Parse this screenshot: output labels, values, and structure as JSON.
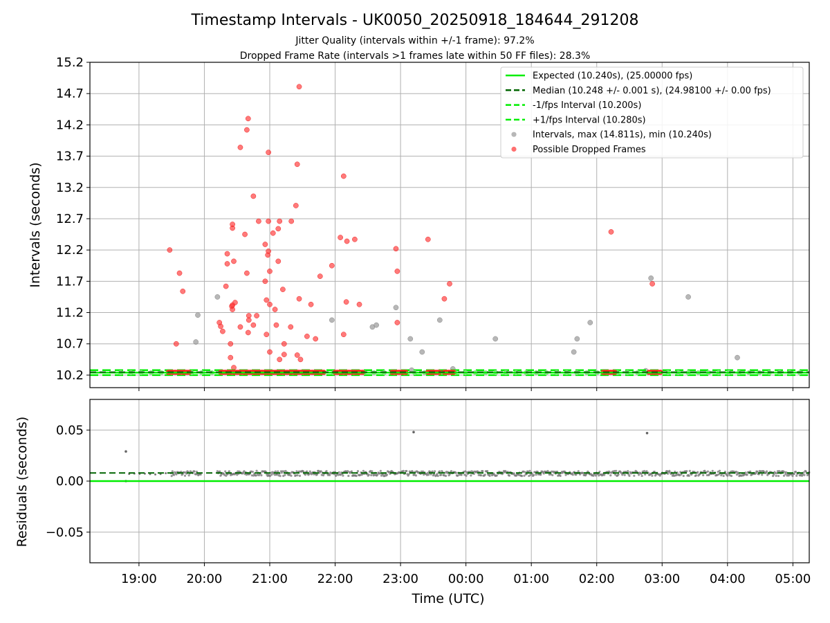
{
  "chart_data": [
    {
      "type": "scatter",
      "title": "Timestamp Intervals - UK0050_20250918_184644_291208",
      "subtitle_1": "Jitter Quality (intervals within +/-1 frame): 97.2%",
      "subtitle_2": "Dropped Frame Rate (intervals >1 frames late within 50 FF files): 28.3%",
      "ylabel": "Intervals (seconds)",
      "ylim": [
        10.0,
        15.2
      ],
      "yticks": [
        "10.2",
        "10.7",
        "11.2",
        "11.7",
        "12.2",
        "12.7",
        "13.2",
        "13.7",
        "14.2",
        "14.7",
        "15.2"
      ],
      "xlim_hours": [
        18.25,
        29.25
      ],
      "grid": true,
      "legend_position": "top-right",
      "expected_interval": 10.24,
      "median_interval": 10.248,
      "lower_interval": 10.2,
      "upper_interval": 10.28,
      "series": [
        {
          "name": "Expected (10.240s), (25.00000 fps)",
          "color": "#00ee00",
          "style": "solid"
        },
        {
          "name": "Median (10.248 +/- 0.001 s), (24.98100 +/- 0.00 fps)",
          "color": "#006400",
          "style": "dashed"
        },
        {
          "name": "-1/fps Interval (10.200s)",
          "color": "#00ee00",
          "style": "dashed"
        },
        {
          "name": "+1/fps Interval (10.280s)",
          "color": "#00ee00",
          "style": "dashed"
        },
        {
          "name": "Intervals, max (14.811s), min (10.240s)",
          "color": "#999999",
          "style": "marker"
        },
        {
          "name": "Possible Dropped Frames",
          "color": "#ff3333",
          "style": "marker"
        }
      ],
      "gray_points": [
        [
          19.87,
          10.73
        ],
        [
          19.9,
          11.16
        ],
        [
          20.2,
          11.45
        ],
        [
          21.95,
          11.08
        ],
        [
          22.57,
          10.97
        ],
        [
          22.63,
          11.0
        ],
        [
          22.93,
          11.28
        ],
        [
          23.15,
          10.78
        ],
        [
          23.17,
          10.28
        ],
        [
          23.33,
          10.57
        ],
        [
          23.6,
          11.08
        ],
        [
          23.8,
          10.3
        ],
        [
          24.45,
          10.78
        ],
        [
          25.65,
          10.57
        ],
        [
          25.7,
          10.78
        ],
        [
          25.9,
          11.04
        ],
        [
          26.75,
          10.27
        ],
        [
          26.83,
          11.75
        ],
        [
          27.4,
          11.45
        ],
        [
          28.15,
          10.48
        ]
      ],
      "dropped_points": [
        [
          19.47,
          12.2
        ],
        [
          19.57,
          10.7
        ],
        [
          19.62,
          11.83
        ],
        [
          19.67,
          11.54
        ],
        [
          20.23,
          11.04
        ],
        [
          20.25,
          10.98
        ],
        [
          20.28,
          10.9
        ],
        [
          20.33,
          11.62
        ],
        [
          20.35,
          11.98
        ],
        [
          20.35,
          12.14
        ],
        [
          20.4,
          10.7
        ],
        [
          20.4,
          10.48
        ],
        [
          20.42,
          11.3
        ],
        [
          20.43,
          11.25
        ],
        [
          20.43,
          11.32
        ],
        [
          20.43,
          12.55
        ],
        [
          20.43,
          12.61
        ],
        [
          20.45,
          12.02
        ],
        [
          20.45,
          10.32
        ],
        [
          20.47,
          11.36
        ],
        [
          20.55,
          13.84
        ],
        [
          20.55,
          10.97
        ],
        [
          20.62,
          12.45
        ],
        [
          20.65,
          11.83
        ],
        [
          20.65,
          14.12
        ],
        [
          20.67,
          14.3
        ],
        [
          20.67,
          10.88
        ],
        [
          20.68,
          11.08
        ],
        [
          20.68,
          11.15
        ],
        [
          20.75,
          13.06
        ],
        [
          20.75,
          11.0
        ],
        [
          20.8,
          11.15
        ],
        [
          20.83,
          12.66
        ],
        [
          20.93,
          12.29
        ],
        [
          20.93,
          11.7
        ],
        [
          20.95,
          11.4
        ],
        [
          20.95,
          10.85
        ],
        [
          20.97,
          12.12
        ],
        [
          20.98,
          13.76
        ],
        [
          20.98,
          12.66
        ],
        [
          20.98,
          12.18
        ],
        [
          21.0,
          11.86
        ],
        [
          21.0,
          11.33
        ],
        [
          21.0,
          10.57
        ],
        [
          21.05,
          12.47
        ],
        [
          21.08,
          11.25
        ],
        [
          21.1,
          11.0
        ],
        [
          21.13,
          12.02
        ],
        [
          21.13,
          12.54
        ],
        [
          21.15,
          12.66
        ],
        [
          21.15,
          10.45
        ],
        [
          21.2,
          11.57
        ],
        [
          21.22,
          10.7
        ],
        [
          21.22,
          10.53
        ],
        [
          21.32,
          10.97
        ],
        [
          21.33,
          12.66
        ],
        [
          21.4,
          12.91
        ],
        [
          21.42,
          13.57
        ],
        [
          21.42,
          10.52
        ],
        [
          21.45,
          14.81
        ],
        [
          21.45,
          11.42
        ],
        [
          21.47,
          10.45
        ],
        [
          21.57,
          10.82
        ],
        [
          21.63,
          11.33
        ],
        [
          21.7,
          10.78
        ],
        [
          21.77,
          11.78
        ],
        [
          21.95,
          11.95
        ],
        [
          22.08,
          12.4
        ],
        [
          22.13,
          13.38
        ],
        [
          22.13,
          10.85
        ],
        [
          22.17,
          11.37
        ],
        [
          22.18,
          12.34
        ],
        [
          22.3,
          12.37
        ],
        [
          22.37,
          11.33
        ],
        [
          22.93,
          12.22
        ],
        [
          22.95,
          11.86
        ],
        [
          22.95,
          11.04
        ],
        [
          23.42,
          12.37
        ],
        [
          23.67,
          11.42
        ],
        [
          23.75,
          11.66
        ],
        [
          26.22,
          12.49
        ],
        [
          26.85,
          11.66
        ]
      ],
      "dropped_clusters_hours": [
        [
          19.45,
          19.78
        ],
        [
          20.25,
          21.85
        ],
        [
          22.0,
          22.45
        ],
        [
          22.87,
          23.1
        ],
        [
          23.42,
          23.6
        ],
        [
          23.67,
          23.82
        ],
        [
          26.1,
          26.3
        ],
        [
          26.8,
          26.98
        ]
      ]
    },
    {
      "type": "scatter",
      "ylabel": "Residuals (seconds)",
      "xlabel": "Time (UTC)",
      "ylim": [
        -0.08,
        0.08
      ],
      "yticks": [
        "0.05",
        "0.00",
        "−0.05"
      ],
      "xlim_hours": [
        18.25,
        29.25
      ],
      "xticks": [
        "19:00",
        "20:00",
        "21:00",
        "22:00",
        "23:00",
        "00:00",
        "01:00",
        "02:00",
        "03:00",
        "04:00",
        "05:00"
      ],
      "expected_residual": 0.0,
      "median_residual": 0.008,
      "residual_band": [
        0.005,
        0.01
      ],
      "outliers": [
        [
          18.8,
          0.029
        ],
        [
          23.2,
          0.048
        ],
        [
          26.77,
          0.047
        ],
        [
          18.8,
          0.0
        ]
      ]
    }
  ]
}
